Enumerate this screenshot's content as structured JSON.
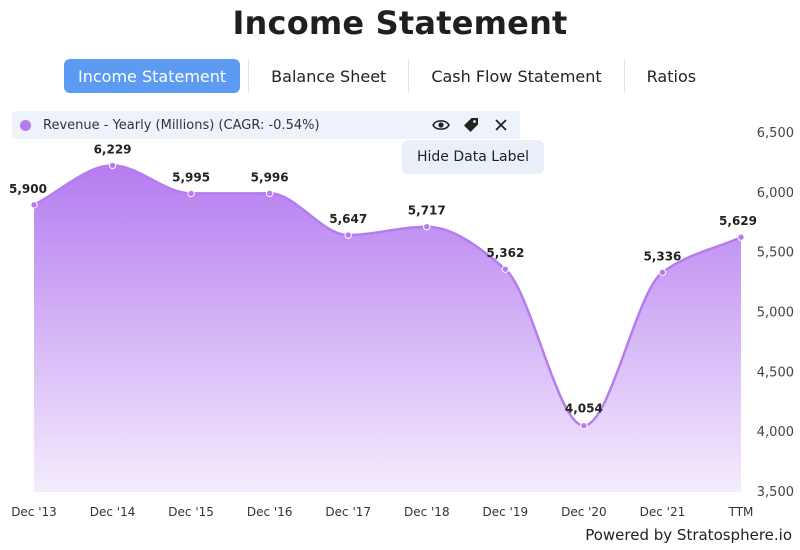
{
  "page": {
    "title": "Income Statement",
    "powered_by": "Powered by Stratosphere.io"
  },
  "tabs": [
    {
      "label": "Income Statement",
      "active": true
    },
    {
      "label": "Balance Sheet",
      "active": false
    },
    {
      "label": "Cash Flow Statement",
      "active": false
    },
    {
      "label": "Ratios",
      "active": false
    }
  ],
  "legend": {
    "label": "Revenue - Yearly (Millions) (CAGR: -0.54%)",
    "color": "#b57cf0",
    "icons": [
      "eye-icon",
      "tag-icon",
      "close-icon"
    ]
  },
  "tooltip": {
    "text": "Hide Data Label"
  },
  "colors": {
    "line": "#b57cf0",
    "fill_top": "#b57cf0",
    "fill_bottom": "#f4ecfd",
    "tab_active": "#5b9cf2"
  },
  "chart_data": {
    "type": "area",
    "x": [
      "Dec '13",
      "Dec '14",
      "Dec '15",
      "Dec '16",
      "Dec '17",
      "Dec '18",
      "Dec '19",
      "Dec '20",
      "Dec '21",
      "TTM"
    ],
    "series": [
      {
        "name": "Revenue - Yearly (Millions) (CAGR: -0.54%)",
        "values": [
          5900,
          6229,
          5995,
          5996,
          5647,
          5717,
          5362,
          4054,
          5336,
          5629
        ]
      }
    ],
    "data_labels": [
      "5,900",
      "6,229",
      "5,995",
      "5,996",
      "5,647",
      "5,717",
      "5,362",
      "4,054",
      "5,336",
      "5,629"
    ],
    "ylim": [
      3500,
      6500
    ],
    "y_ticks": [
      3500,
      4000,
      4500,
      5000,
      5500,
      6000,
      6500
    ],
    "y_tick_labels": [
      "3,500",
      "4,000",
      "4,500",
      "5,000",
      "5,500",
      "6,000",
      "6,500"
    ],
    "y_axis_side": "right",
    "grid": false,
    "legend_position": "top-left"
  }
}
